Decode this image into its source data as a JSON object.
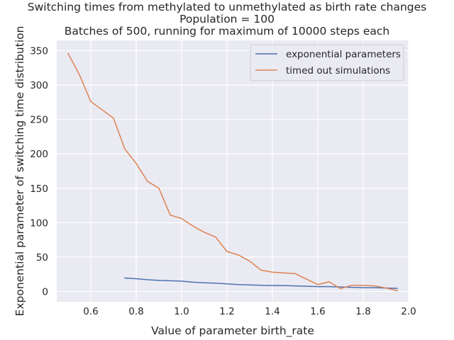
{
  "chart_data": {
    "type": "line",
    "title_lines": [
      "Switching times from methylated to unmethylated as birth rate changes",
      "Population = 100",
      "Batches of 500, running for maximum of 10000 steps each"
    ],
    "xlabel": "Value of parameter birth_rate",
    "ylabel": "Exponential parameter of switching time distribution",
    "xlim": [
      0.45,
      2.0
    ],
    "ylim": [
      -15,
      365
    ],
    "xticks": [
      0.6,
      0.8,
      1.0,
      1.2,
      1.4,
      1.6,
      1.8,
      2.0
    ],
    "xtick_labels": [
      "0.6",
      "0.8",
      "1.0",
      "1.2",
      "1.4",
      "1.6",
      "1.8",
      "2.0"
    ],
    "yticks": [
      0,
      50,
      100,
      150,
      200,
      250,
      300,
      350
    ],
    "ytick_labels": [
      "0",
      "50",
      "100",
      "150",
      "200",
      "250",
      "300",
      "350"
    ],
    "grid": true,
    "legend_position": "top-right",
    "series": [
      {
        "name": "exponential parameters",
        "color": "#4c72b0",
        "x": [
          0.75,
          0.8,
          0.85,
          0.9,
          0.95,
          1.0,
          1.05,
          1.1,
          1.15,
          1.2,
          1.25,
          1.3,
          1.35,
          1.4,
          1.45,
          1.5,
          1.55,
          1.6,
          1.65,
          1.7,
          1.75,
          1.8,
          1.85,
          1.9,
          1.95
        ],
        "y": [
          19.5,
          18.5,
          17,
          16,
          15.5,
          15,
          13.5,
          12.5,
          12,
          11,
          10,
          9.5,
          9,
          8.5,
          8.5,
          8,
          7.5,
          7,
          7,
          6.5,
          6,
          5.5,
          5.5,
          5,
          4.5
        ]
      },
      {
        "name": "timed out simulations",
        "color": "#dd8452",
        "x": [
          0.5,
          0.55,
          0.6,
          0.65,
          0.7,
          0.75,
          0.8,
          0.85,
          0.9,
          0.95,
          1.0,
          1.05,
          1.1,
          1.15,
          1.2,
          1.25,
          1.3,
          1.35,
          1.4,
          1.45,
          1.5,
          1.55,
          1.6,
          1.65,
          1.7,
          1.75,
          1.8,
          1.85,
          1.9,
          1.95
        ],
        "y": [
          346,
          315,
          276,
          264,
          252,
          207,
          186,
          160,
          150,
          111,
          106,
          95,
          86,
          79,
          58,
          53,
          44,
          31,
          28,
          27,
          26,
          18,
          10,
          14,
          4,
          9,
          9,
          8,
          5,
          1
        ]
      }
    ]
  }
}
